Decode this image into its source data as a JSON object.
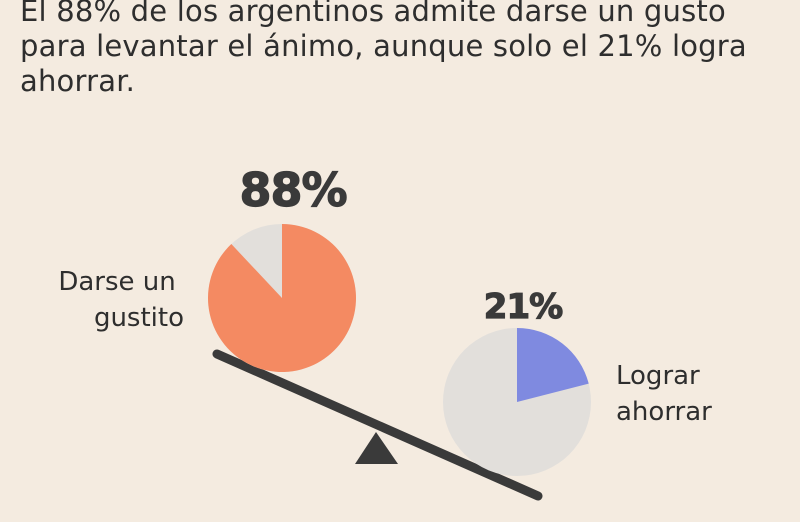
{
  "headline": "El 88% de los argentinos admite darse un gusto para levantar el ánimo, aunque solo el 21% logra ahorrar.",
  "colors": {
    "background": "#f4ebe0",
    "gustito": "#f48a62",
    "ahorrar": "#7f8ae0",
    "remainder": "#e2dfdb",
    "text": "#2e2e2e",
    "seesaw": "#3a3a3a"
  },
  "chart_data": {
    "type": "pie",
    "series": [
      {
        "value": 88,
        "value_label": "88%",
        "label_lines": [
          "Darse un",
          "gustito"
        ],
        "color": "#f48a62",
        "remainder_color": "#e2dfdb"
      },
      {
        "value": 21,
        "value_label": "21%",
        "label_lines": [
          "Lograr",
          "ahorrar"
        ],
        "color": "#7f8ae0",
        "remainder_color": "#e2dfdb"
      }
    ]
  }
}
